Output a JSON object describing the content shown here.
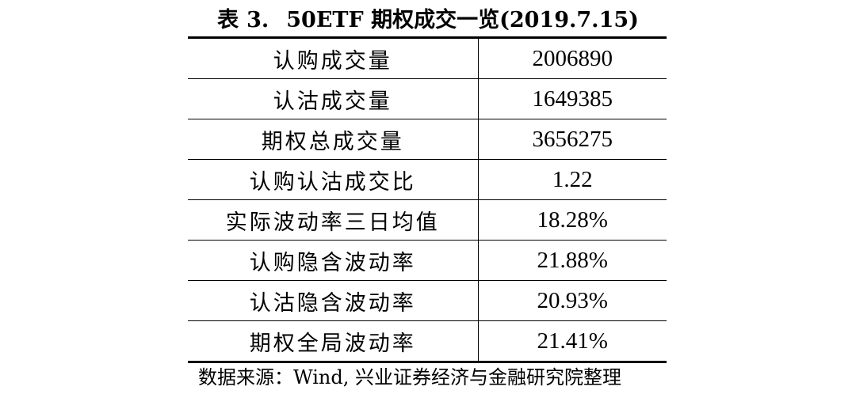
{
  "title": {
    "prefix": "表",
    "number": "3.",
    "text": "50ETF 期权成交一览(2019.7.15)"
  },
  "table": {
    "rows": [
      {
        "label": "认购成交量",
        "value": "2006890"
      },
      {
        "label": "认沽成交量",
        "value": "1649385"
      },
      {
        "label": "期权总成交量",
        "value": "3656275"
      },
      {
        "label": "认购认沽成交比",
        "value": "1.22"
      },
      {
        "label": "实际波动率三日均值",
        "value": "18.28%"
      },
      {
        "label": "认购隐含波动率",
        "value": "21.88%"
      },
      {
        "label": "认沽隐含波动率",
        "value": "20.93%"
      },
      {
        "label": "期权全局波动率",
        "value": "21.41%"
      }
    ]
  },
  "source": "数据来源：Wind, 兴业证券经济与金融研究院整理"
}
